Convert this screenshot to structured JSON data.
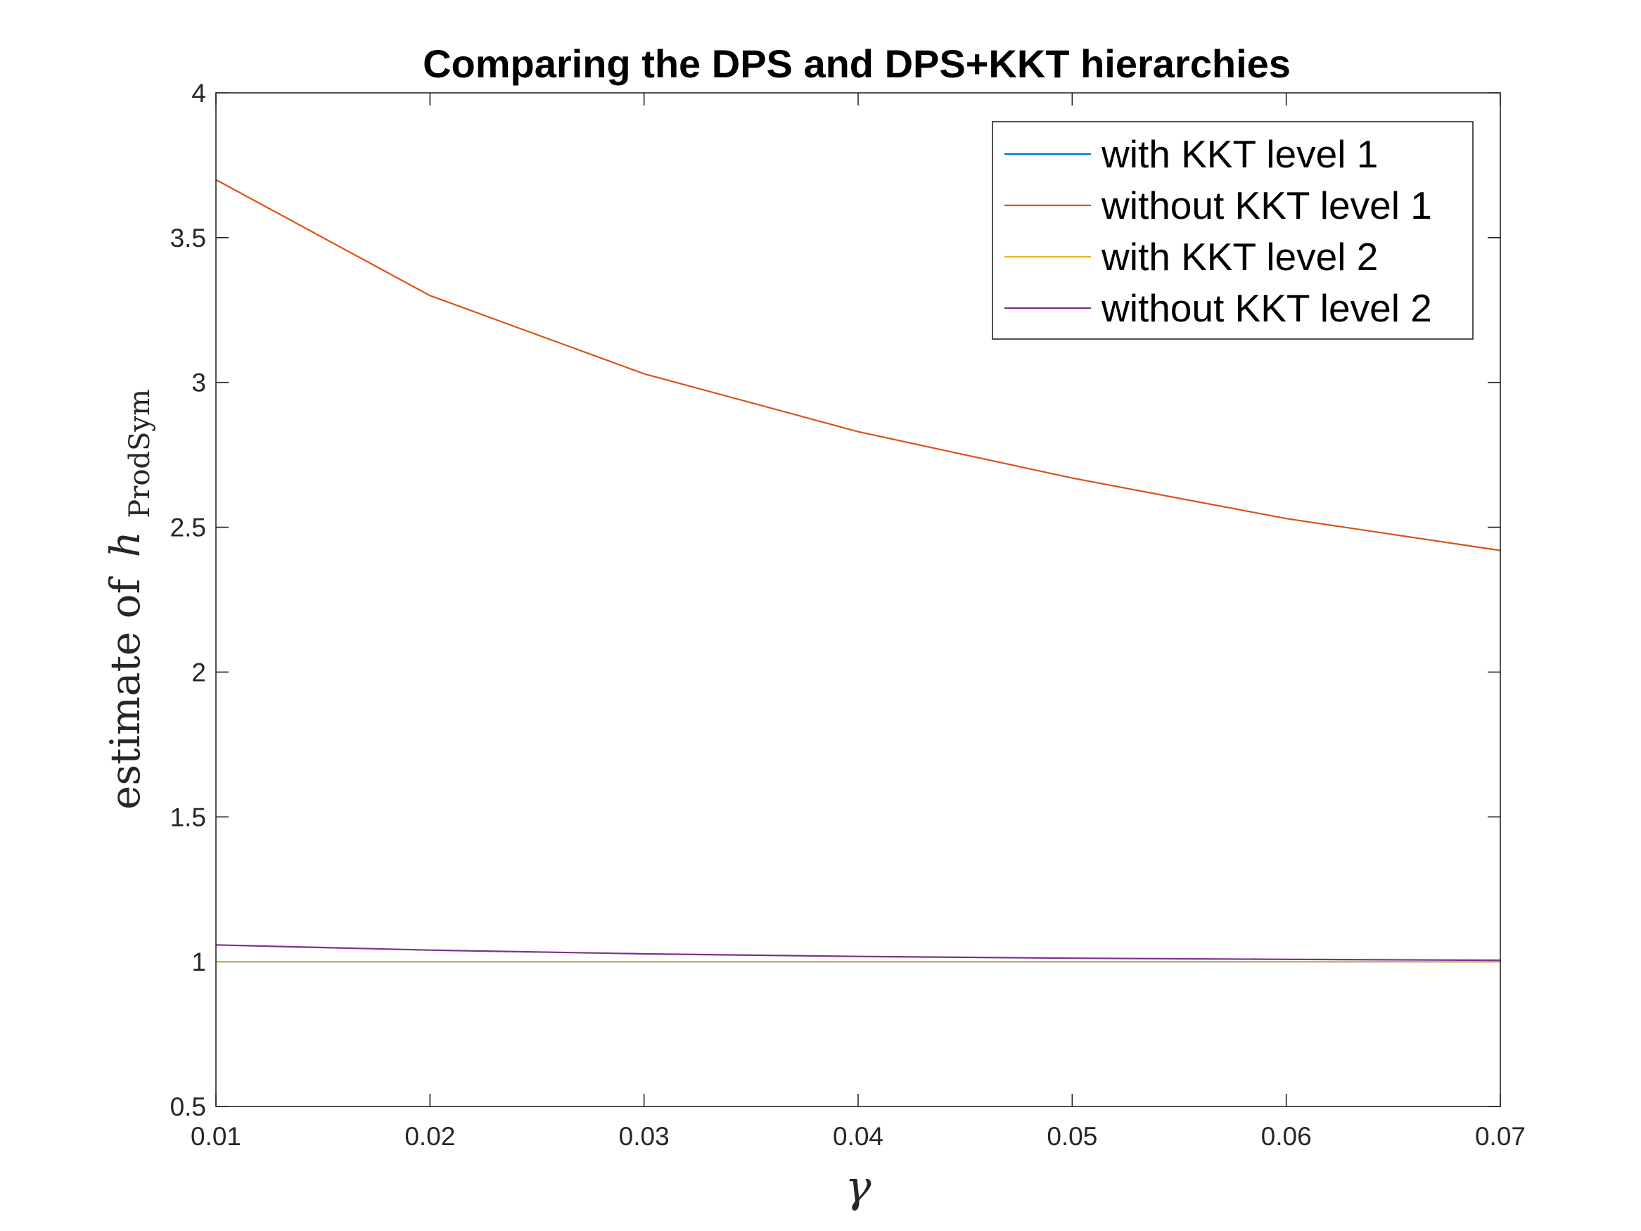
{
  "chart_data": {
    "type": "line",
    "title": "Comparing the DPS and DPS+KKT hierarchies",
    "xlabel": "γ",
    "ylabel": {
      "text": "estimate of",
      "symbol": "h",
      "subscript": "ProdSym"
    },
    "x": [
      0.01,
      0.02,
      0.03,
      0.04,
      0.05,
      0.06,
      0.07
    ],
    "x_tick_labels": [
      "0.01",
      "0.02",
      "0.03",
      "0.04",
      "0.05",
      "0.06",
      "0.07"
    ],
    "y_ticks": [
      0.5,
      1,
      1.5,
      2,
      2.5,
      3,
      3.5,
      4
    ],
    "y_tick_labels": [
      "0.5",
      "1",
      "1.5",
      "2",
      "2.5",
      "3",
      "3.5",
      "4"
    ],
    "xlim": [
      0.01,
      0.07
    ],
    "ylim": [
      0.5,
      4
    ],
    "grid": false,
    "legend_position": "top-right",
    "series": [
      {
        "name": "with KKT level 1",
        "color": "#0072BD",
        "values": [
          1,
          1,
          1,
          1,
          1,
          1,
          1
        ]
      },
      {
        "name": "without KKT level 1",
        "color": "#D95319",
        "values": [
          3.7,
          3.3,
          3.03,
          2.83,
          2.67,
          2.53,
          2.42
        ]
      },
      {
        "name": "with KKT level 2",
        "color": "#EDB120",
        "values": [
          1,
          1,
          1,
          1,
          1,
          1,
          1
        ]
      },
      {
        "name": "without KKT level 2",
        "color": "#7E2F8E",
        "values": [
          1.058,
          1.04,
          1.027,
          1.018,
          1.012,
          1.008,
          1.005
        ]
      }
    ]
  }
}
